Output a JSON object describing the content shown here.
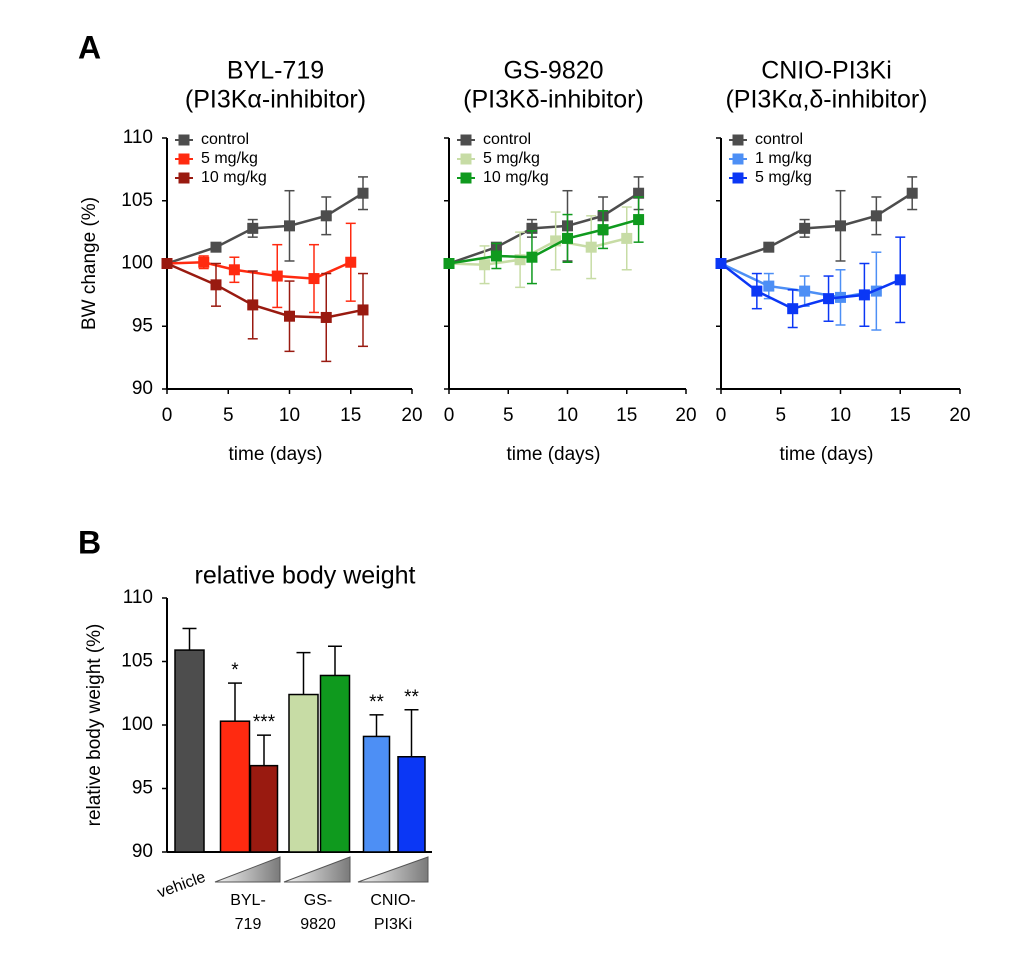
{
  "panels": [
    "A",
    "B"
  ],
  "chart_data": [
    {
      "type": "line",
      "title": "BYL-719",
      "subtitle": "(PI3Kα-inhibitor)",
      "xlabel": "time (days)",
      "ylabel": "BW change (%)",
      "xlim": [
        0,
        20
      ],
      "xticks": [
        0,
        5,
        10,
        15,
        20
      ],
      "ylim": [
        90,
        110
      ],
      "yticks": [
        90,
        95,
        100,
        105,
        110
      ],
      "ytick_labels": true,
      "legend": "top-left",
      "series": [
        {
          "name": "control",
          "color": "#4d4d4d",
          "x": [
            0,
            4,
            7,
            10,
            13,
            16
          ],
          "values": [
            100,
            101.3,
            102.8,
            103.0,
            103.8,
            105.6
          ],
          "errors": [
            0,
            0.3,
            0.7,
            2.8,
            1.5,
            1.3
          ]
        },
        {
          "name": "5 mg/kg",
          "color": "#ff2a10",
          "x": [
            0,
            3,
            5.5,
            9,
            12,
            15
          ],
          "values": [
            100,
            100.1,
            99.5,
            99.0,
            98.8,
            100.1
          ],
          "errors": [
            0,
            0.5,
            1.0,
            2.5,
            2.7,
            3.1
          ]
        },
        {
          "name": "10 mg/kg",
          "color": "#991a10",
          "x": [
            0,
            4,
            7,
            10,
            13,
            16
          ],
          "values": [
            100,
            98.3,
            96.7,
            95.8,
            95.7,
            96.3
          ],
          "errors": [
            0,
            1.7,
            2.7,
            2.8,
            3.5,
            2.9
          ]
        }
      ]
    },
    {
      "type": "line",
      "title": "GS-9820",
      "subtitle": "(PI3Kδ-inhibitor)",
      "xlabel": "time (days)",
      "xlim": [
        0,
        20
      ],
      "xticks": [
        0,
        5,
        10,
        15,
        20
      ],
      "ylim": [
        90,
        110
      ],
      "yticks": [
        90,
        95,
        100,
        105,
        110
      ],
      "ytick_labels": false,
      "legend": "top-left",
      "series": [
        {
          "name": "control",
          "color": "#4d4d4d",
          "x": [
            0,
            4,
            7,
            10,
            13,
            16
          ],
          "values": [
            100,
            101.3,
            102.8,
            103.0,
            103.8,
            105.6
          ],
          "errors": [
            0,
            0.3,
            0.7,
            2.8,
            1.5,
            1.3
          ]
        },
        {
          "name": "5 mg/kg",
          "color": "#c7dca5",
          "x": [
            0,
            3,
            6,
            9,
            12,
            15
          ],
          "values": [
            100,
            99.9,
            100.3,
            101.8,
            101.3,
            102.0
          ],
          "errors": [
            0,
            1.5,
            2.2,
            2.3,
            2.5,
            2.5
          ]
        },
        {
          "name": "10 mg/kg",
          "color": "#0f9a1e",
          "x": [
            0,
            4,
            7,
            10,
            13,
            16
          ],
          "values": [
            100,
            100.6,
            100.5,
            102.0,
            102.7,
            103.5
          ],
          "errors": [
            0,
            1.0,
            2.1,
            1.9,
            1.5,
            1.8
          ]
        }
      ]
    },
    {
      "type": "line",
      "title": "CNIO-PI3Ki",
      "subtitle": "(PI3Kα,δ-inhibitor)",
      "xlabel": "time (days)",
      "xlim": [
        0,
        20
      ],
      "xticks": [
        0,
        5,
        10,
        15,
        20
      ],
      "ylim": [
        90,
        110
      ],
      "yticks": [
        90,
        95,
        100,
        105,
        110
      ],
      "ytick_labels": false,
      "legend": "top-left",
      "series": [
        {
          "name": "control",
          "color": "#4d4d4d",
          "x": [
            0,
            4,
            7,
            10,
            13,
            16
          ],
          "values": [
            100,
            101.3,
            102.8,
            103.0,
            103.8,
            105.6
          ],
          "errors": [
            0,
            0.3,
            0.7,
            2.8,
            1.5,
            1.3
          ]
        },
        {
          "name": "1 mg/kg",
          "color": "#4d8ff5",
          "x": [
            0,
            4,
            7,
            10,
            13
          ],
          "values": [
            100,
            98.2,
            97.8,
            97.3,
            97.8
          ],
          "errors": [
            0,
            1.0,
            1.2,
            2.2,
            3.1
          ]
        },
        {
          "name": "5 mg/kg",
          "color": "#0b37f5",
          "x": [
            0,
            3,
            6,
            9,
            12,
            15
          ],
          "values": [
            100,
            97.8,
            96.4,
            97.2,
            97.5,
            98.7
          ],
          "errors": [
            0,
            1.4,
            1.5,
            1.8,
            2.5,
            3.4
          ]
        }
      ]
    },
    {
      "type": "bar",
      "title": "relative body weight",
      "ylabel": "relative body weight (%)",
      "ylim": [
        90,
        110
      ],
      "yticks": [
        90,
        95,
        100,
        105,
        110
      ],
      "categories": [
        "vehicle",
        null,
        null,
        null,
        null,
        null,
        null
      ],
      "values": [
        105.9,
        100.3,
        96.8,
        102.4,
        103.9,
        99.1,
        97.5
      ],
      "errors": [
        1.7,
        3.0,
        2.4,
        3.3,
        2.3,
        1.7,
        3.7
      ],
      "colors": [
        "#4d4d4d",
        "#ff2a10",
        "#991a10",
        "#c7dca5",
        "#0f9a1e",
        "#4d8ff5",
        "#0b37f5"
      ],
      "annotations": [
        null,
        "*",
        "***",
        null,
        null,
        "**",
        "**"
      ],
      "group_labels": [
        [
          "BYL-",
          "719"
        ],
        [
          "GS-",
          "9820"
        ],
        [
          "CNIO-",
          "PI3Ki"
        ]
      ]
    }
  ]
}
